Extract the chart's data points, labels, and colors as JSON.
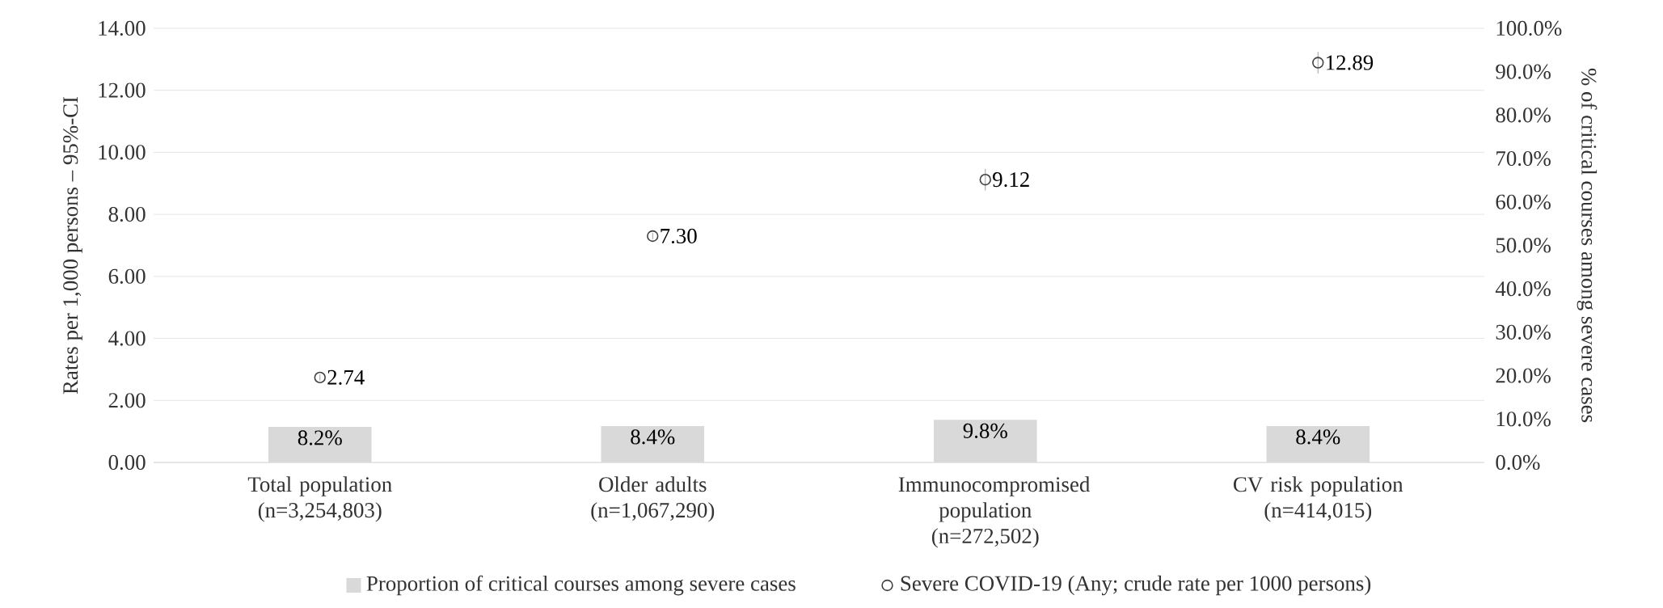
{
  "chart_data": {
    "type": "bar",
    "categories": [
      "Total population (n=3,254,803)",
      "Older adults (n=1,067,290)",
      "Immunocompromised population (n=272,502)",
      "CV risk population (n=414,015)"
    ],
    "ylabel": "Rates per 1,000 persons – 95%-CI",
    "y2label": "% of critical courses among severe cases",
    "ylim": [
      0,
      14
    ],
    "yticks": [
      {
        "value": 0,
        "label": "0.00"
      },
      {
        "value": 2,
        "label": "2.00"
      },
      {
        "value": 4,
        "label": "4.00"
      },
      {
        "value": 6,
        "label": "6.00"
      },
      {
        "value": 8,
        "label": "8.00"
      },
      {
        "value": 10,
        "label": "10.00"
      },
      {
        "value": 12,
        "label": "12.00"
      },
      {
        "value": 14,
        "label": "14.00"
      }
    ],
    "y2lim": [
      0,
      100
    ],
    "y2ticks": [
      {
        "value": 0,
        "label": "0.0%"
      },
      {
        "value": 10,
        "label": "10.0%"
      },
      {
        "value": 20,
        "label": "20.0%"
      },
      {
        "value": 30,
        "label": "30.0%"
      },
      {
        "value": 40,
        "label": "40.0%"
      },
      {
        "value": 50,
        "label": "50.0%"
      },
      {
        "value": 60,
        "label": "60.0%"
      },
      {
        "value": 70,
        "label": "70.0%"
      },
      {
        "value": 80,
        "label": "80.0%"
      },
      {
        "value": 90,
        "label": "90.0%"
      },
      {
        "value": 100,
        "label": "100.0%"
      }
    ],
    "grid": "y",
    "legend": "bottom",
    "series": [
      {
        "name": "Proportion of critical courses among severe cases",
        "axis": "y2",
        "color": "#d9d9d9",
        "values": [
          8.2,
          8.4,
          9.8,
          8.4
        ],
        "value_labels": [
          "8.2%",
          "8.4%",
          "9.8%",
          "8.4%"
        ]
      },
      {
        "name": "Severe COVID-19 (Any; crude rate per 1000 persons)",
        "type": "scatter",
        "marker": "circle",
        "color": "#404040",
        "values": [
          2.74,
          7.3,
          9.12,
          12.89
        ],
        "errors": [
          0.1,
          0.1,
          0.35,
          0.35
        ],
        "value_labels": [
          "2.74",
          "7.30",
          "9.12",
          "12.89"
        ]
      }
    ]
  }
}
